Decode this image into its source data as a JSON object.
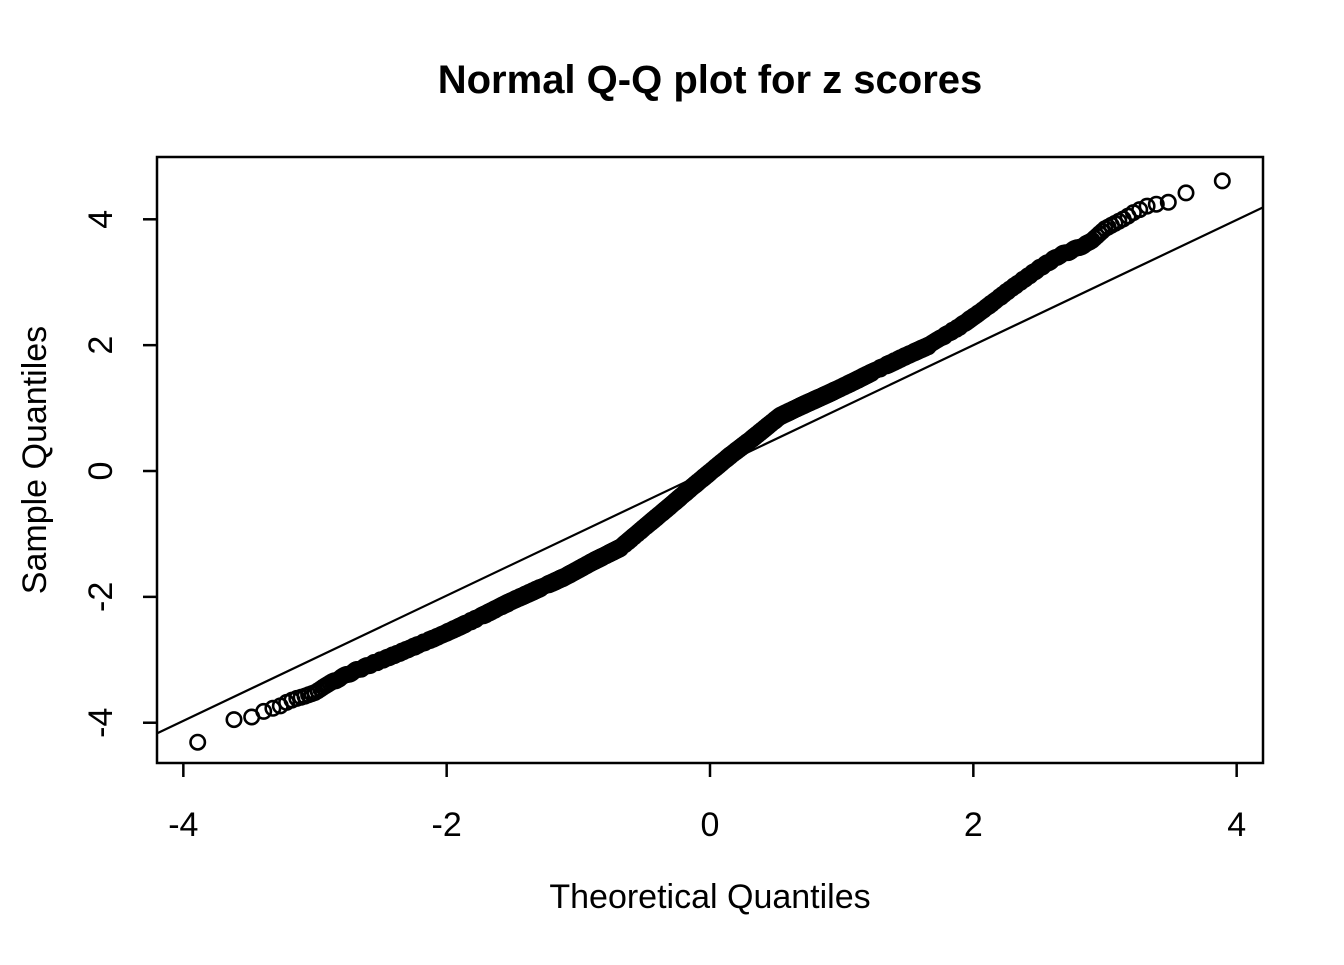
{
  "title": "Normal Q-Q plot for z scores",
  "chart_data": {
    "type": "scatter",
    "title": "Normal Q-Q plot for z scores",
    "xlabel": "Theoretical Quantiles",
    "ylabel": "Sample Quantiles",
    "xlim": [
      -4.2,
      4.2
    ],
    "ylim": [
      -4.64,
      4.99
    ],
    "x_ticks": [
      -4,
      -2,
      0,
      2,
      4
    ],
    "y_ticks": [
      -4,
      -2,
      0,
      2,
      4
    ],
    "grid": false,
    "legend": "none",
    "background_color": "#ffffff",
    "marker": "open-circle",
    "marker_color": "#000000",
    "n_points": 10000,
    "reference_line": {
      "slope": 0.995,
      "intercept": 0.01,
      "color": "#000000"
    },
    "qq_anchors": [
      [
        -3.891,
        -4.31
      ],
      [
        -3.615,
        -3.95
      ],
      [
        -3.481,
        -3.91
      ],
      [
        -3.39,
        -3.82
      ],
      [
        -3.32,
        -3.77
      ],
      [
        -3.26,
        -3.73
      ],
      [
        -3.21,
        -3.67
      ],
      [
        -3.15,
        -3.62
      ],
      [
        -3.08,
        -3.58
      ],
      [
        -3.0,
        -3.52
      ],
      [
        -2.88,
        -3.36
      ],
      [
        -2.7,
        -3.18
      ],
      [
        -2.5,
        -3.01
      ],
      [
        -2.3,
        -2.84
      ],
      [
        -2.1,
        -2.66
      ],
      [
        -1.9,
        -2.47
      ],
      [
        -1.7,
        -2.27
      ],
      [
        -1.5,
        -2.06
      ],
      [
        -1.3,
        -1.87
      ],
      [
        -1.1,
        -1.68
      ],
      [
        -0.9,
        -1.45
      ],
      [
        -0.68,
        -1.22
      ],
      [
        -0.5,
        -0.9
      ],
      [
        -0.3,
        -0.55
      ],
      [
        -0.15,
        -0.28
      ],
      [
        0.0,
        -0.02
      ],
      [
        0.15,
        0.24
      ],
      [
        0.3,
        0.48
      ],
      [
        0.53,
        0.87
      ],
      [
        0.7,
        1.04
      ],
      [
        0.91,
        1.24
      ],
      [
        1.1,
        1.43
      ],
      [
        1.29,
        1.63
      ],
      [
        1.48,
        1.82
      ],
      [
        1.67,
        2.0
      ],
      [
        1.9,
        2.3
      ],
      [
        2.1,
        2.6
      ],
      [
        2.3,
        2.92
      ],
      [
        2.5,
        3.22
      ],
      [
        2.65,
        3.42
      ],
      [
        2.8,
        3.55
      ],
      [
        2.9,
        3.66
      ],
      [
        3.0,
        3.85
      ],
      [
        3.09,
        3.95
      ],
      [
        3.16,
        4.03
      ],
      [
        3.21,
        4.1
      ],
      [
        3.26,
        4.15
      ],
      [
        3.32,
        4.21
      ],
      [
        3.39,
        4.24
      ],
      [
        3.48,
        4.27
      ],
      [
        3.615,
        4.42
      ],
      [
        3.891,
        4.61
      ]
    ]
  }
}
